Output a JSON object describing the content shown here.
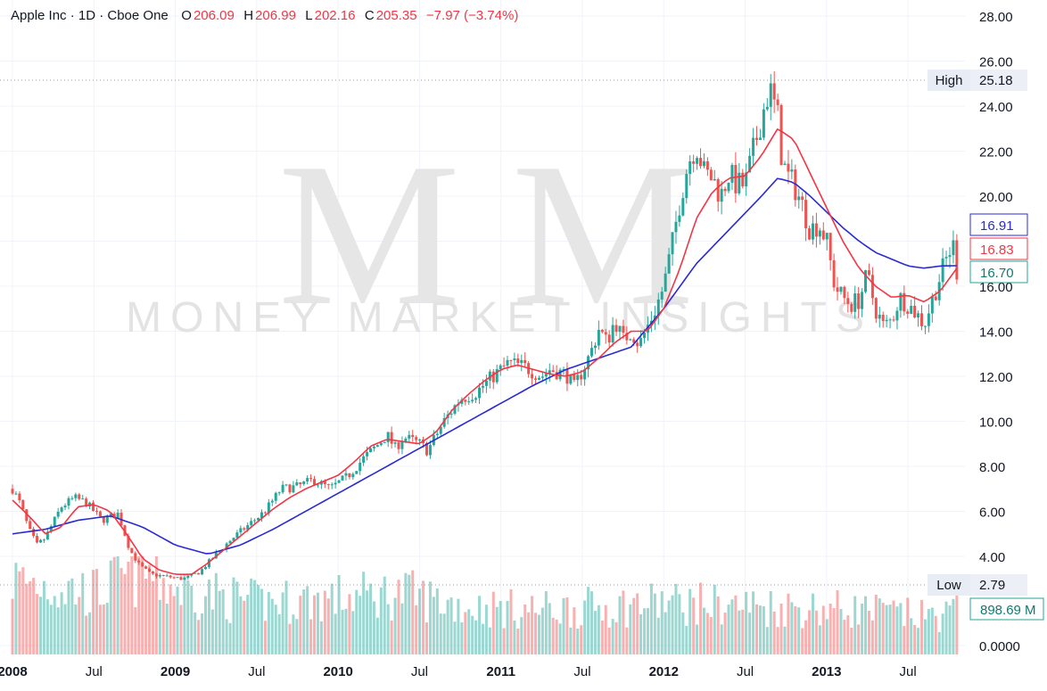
{
  "header": {
    "symbol": "Apple Inc · 1D · Cboe One",
    "ohlc": {
      "o_label": "O",
      "o": "206.09",
      "h_label": "H",
      "h": "206.99",
      "l_label": "L",
      "l": "202.16",
      "c_label": "C",
      "c": "205.35",
      "change": "−7.97 (−3.74%)"
    }
  },
  "watermark": {
    "monogram": "M M",
    "text": "MONEY MARKET INSIGHTS"
  },
  "badges": {
    "high_label": "High",
    "high_value": "25.18",
    "low_label": "Low",
    "low_value": "2.79",
    "blue_value": "16.91",
    "red_value": "16.83",
    "price_value": "16.70",
    "volume_value": "898.69 M"
  },
  "colors": {
    "up": "#26a69a",
    "down": "#ef5350",
    "ma_fast": "#f23645",
    "ma_slow": "#2929d6",
    "grid": "#f0f3fa"
  },
  "chart_data": {
    "type": "line",
    "title": "Apple Inc · 1D · Cboe One",
    "ylim": [
      0,
      28
    ],
    "y_ticks": [
      "28.00",
      "26.00",
      "24.00",
      "22.00",
      "20.00",
      "18.00",
      "16.00",
      "14.00",
      "12.00",
      "10.00",
      "8.00",
      "6.00",
      "4.00",
      "0.0000"
    ],
    "x_ticks": [
      "2008",
      "Jul",
      "2009",
      "Jul",
      "2010",
      "Jul",
      "2011",
      "Jul",
      "2012",
      "Jul",
      "2013",
      "Jul"
    ],
    "x_start": "2008.0",
    "series": [
      {
        "role": "price",
        "x": [
          2008.0,
          2008.05,
          2008.1,
          2008.15,
          2008.2,
          2008.3,
          2008.38,
          2008.45,
          2008.55,
          2008.65,
          2008.72,
          2008.78,
          2008.85,
          2008.95,
          2009.05,
          2009.15,
          2009.25,
          2009.35,
          2009.45,
          2009.55,
          2009.65,
          2009.75,
          2009.85,
          2009.95,
          2010.05,
          2010.15,
          2010.25,
          2010.3,
          2010.35,
          2010.4,
          2010.5,
          2010.55,
          2010.65,
          2010.75,
          2010.85,
          2010.95,
          2011.05,
          2011.15,
          2011.25,
          2011.3,
          2011.4,
          2011.45,
          2011.55,
          2011.6,
          2011.65,
          2011.7,
          2011.75,
          2011.8,
          2011.85,
          2011.9,
          2011.95,
          2012.0,
          2012.05,
          2012.1,
          2012.15,
          2012.2,
          2012.25,
          2012.3,
          2012.35,
          2012.4,
          2012.45,
          2012.5,
          2012.55,
          2012.6,
          2012.65,
          2012.7,
          2012.72,
          2012.75,
          2012.8,
          2012.85,
          2012.9,
          2012.95,
          2013.0,
          2013.05,
          2013.1,
          2013.15,
          2013.2,
          2013.25,
          2013.3,
          2013.35,
          2013.4,
          2013.45,
          2013.5,
          2013.55,
          2013.6,
          2013.65,
          2013.7,
          2013.75,
          2013.78,
          2013.8
        ],
        "values": [
          7.0,
          6.3,
          5.2,
          4.5,
          4.8,
          6.2,
          6.6,
          6.4,
          5.6,
          5.9,
          4.3,
          3.6,
          3.2,
          3.1,
          3.0,
          3.3,
          4.1,
          4.8,
          5.4,
          6.0,
          7.0,
          7.1,
          7.4,
          7.0,
          7.5,
          8.3,
          9.0,
          9.4,
          8.8,
          9.3,
          9.0,
          8.7,
          10.0,
          11.0,
          11.3,
          12.0,
          12.6,
          12.4,
          12.0,
          12.3,
          12.1,
          11.5,
          13.0,
          14.1,
          13.5,
          14.5,
          13.6,
          14.0,
          13.4,
          14.2,
          15.0,
          16.0,
          17.8,
          19.8,
          21.5,
          22.3,
          21.0,
          20.8,
          20.0,
          21.0,
          20.5,
          20.5,
          22.0,
          23.5,
          24.8,
          23.5,
          22.0,
          21.0,
          20.5,
          19.6,
          18.5,
          18.8,
          18.0,
          16.0,
          15.5,
          15.2,
          15.4,
          16.5,
          15.0,
          14.2,
          14.5,
          15.5,
          15.2,
          14.8,
          14.3,
          15.4,
          16.5,
          17.5,
          17.8,
          16.7
        ]
      },
      {
        "role": "ma-fast",
        "x": [
          2008.0,
          2008.1,
          2008.2,
          2008.3,
          2008.4,
          2008.5,
          2008.6,
          2008.7,
          2008.8,
          2008.9,
          2009.0,
          2009.1,
          2009.2,
          2009.3,
          2009.4,
          2009.5,
          2009.6,
          2009.7,
          2009.8,
          2009.9,
          2010.0,
          2010.1,
          2010.2,
          2010.3,
          2010.4,
          2010.5,
          2010.6,
          2010.7,
          2010.8,
          2010.9,
          2011.0,
          2011.1,
          2011.2,
          2011.3,
          2011.4,
          2011.5,
          2011.6,
          2011.7,
          2011.8,
          2011.9,
          2012.0,
          2012.1,
          2012.2,
          2012.3,
          2012.4,
          2012.5,
          2012.6,
          2012.7,
          2012.8,
          2012.9,
          2013.0,
          2013.1,
          2013.2,
          2013.3,
          2013.4,
          2013.5,
          2013.6,
          2013.7,
          2013.8
        ],
        "values": [
          6.5,
          5.8,
          5.0,
          5.3,
          6.2,
          6.3,
          6.0,
          5.0,
          3.9,
          3.4,
          3.2,
          3.2,
          3.7,
          4.3,
          4.9,
          5.5,
          6.1,
          6.6,
          7.0,
          7.3,
          7.6,
          8.2,
          8.9,
          9.2,
          9.1,
          9.0,
          9.5,
          10.5,
          11.2,
          11.8,
          12.3,
          12.5,
          12.3,
          12.1,
          12.0,
          12.2,
          12.8,
          13.5,
          14.0,
          14.0,
          15.0,
          16.8,
          19.0,
          20.2,
          20.8,
          20.9,
          21.8,
          23.0,
          22.5,
          21.0,
          19.5,
          18.0,
          16.8,
          16.0,
          15.5,
          15.6,
          15.3,
          15.8,
          16.8
        ]
      },
      {
        "role": "ma-slow",
        "x": [
          2008.0,
          2008.2,
          2008.4,
          2008.6,
          2008.8,
          2009.0,
          2009.2,
          2009.4,
          2009.6,
          2009.8,
          2010.0,
          2010.2,
          2010.4,
          2010.6,
          2010.8,
          2011.0,
          2011.2,
          2011.4,
          2011.6,
          2011.8,
          2012.0,
          2012.2,
          2012.4,
          2012.6,
          2012.7,
          2012.8,
          2012.9,
          2013.0,
          2013.1,
          2013.2,
          2013.3,
          2013.4,
          2013.5,
          2013.6,
          2013.7,
          2013.8
        ],
        "values": [
          5.0,
          5.2,
          5.6,
          5.8,
          5.3,
          4.5,
          4.1,
          4.5,
          5.2,
          6.0,
          6.8,
          7.6,
          8.4,
          9.2,
          10.0,
          10.8,
          11.6,
          12.3,
          12.8,
          13.3,
          15.0,
          17.0,
          18.5,
          20.0,
          20.8,
          20.6,
          20.0,
          19.3,
          18.6,
          18.0,
          17.5,
          17.2,
          16.9,
          16.8,
          16.9,
          16.91
        ]
      },
      {
        "role": "volume",
        "note_unit": "M",
        "x": [
          2008.0,
          2008.5,
          2008.8,
          2009.0,
          2009.5,
          2010.0,
          2010.4,
          2010.8,
          2011.2,
          2011.6,
          2012.0,
          2012.4,
          2012.8,
          2013.2,
          2013.6,
          2013.8
        ],
        "values": [
          1600,
          1300,
          1800,
          1400,
          1100,
          1200,
          1300,
          1000,
          950,
          1000,
          1100,
          1050,
          1000,
          950,
          800,
          898.69
        ]
      }
    ]
  }
}
